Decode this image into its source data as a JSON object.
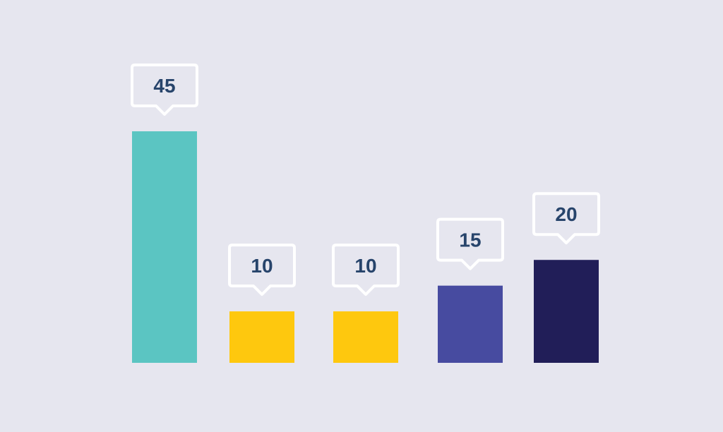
{
  "chart_data": {
    "type": "bar",
    "title": "",
    "xlabel": "",
    "ylabel": "",
    "ylim": [
      0,
      45
    ],
    "grid": false,
    "legend": "none",
    "categories": [
      "",
      "",
      "",
      "",
      ""
    ],
    "values": [
      45,
      10,
      10,
      15,
      20
    ],
    "colors": [
      "#5bc5c2",
      "#fec80e",
      "#fec80e",
      "#474ba0",
      "#211e58"
    ],
    "data_labels": [
      "45",
      "10",
      "10",
      "15",
      "20"
    ],
    "label_style": "speech-bubble callouts above each bar",
    "background": "#e6e6ef",
    "label_color": "#27446b"
  }
}
